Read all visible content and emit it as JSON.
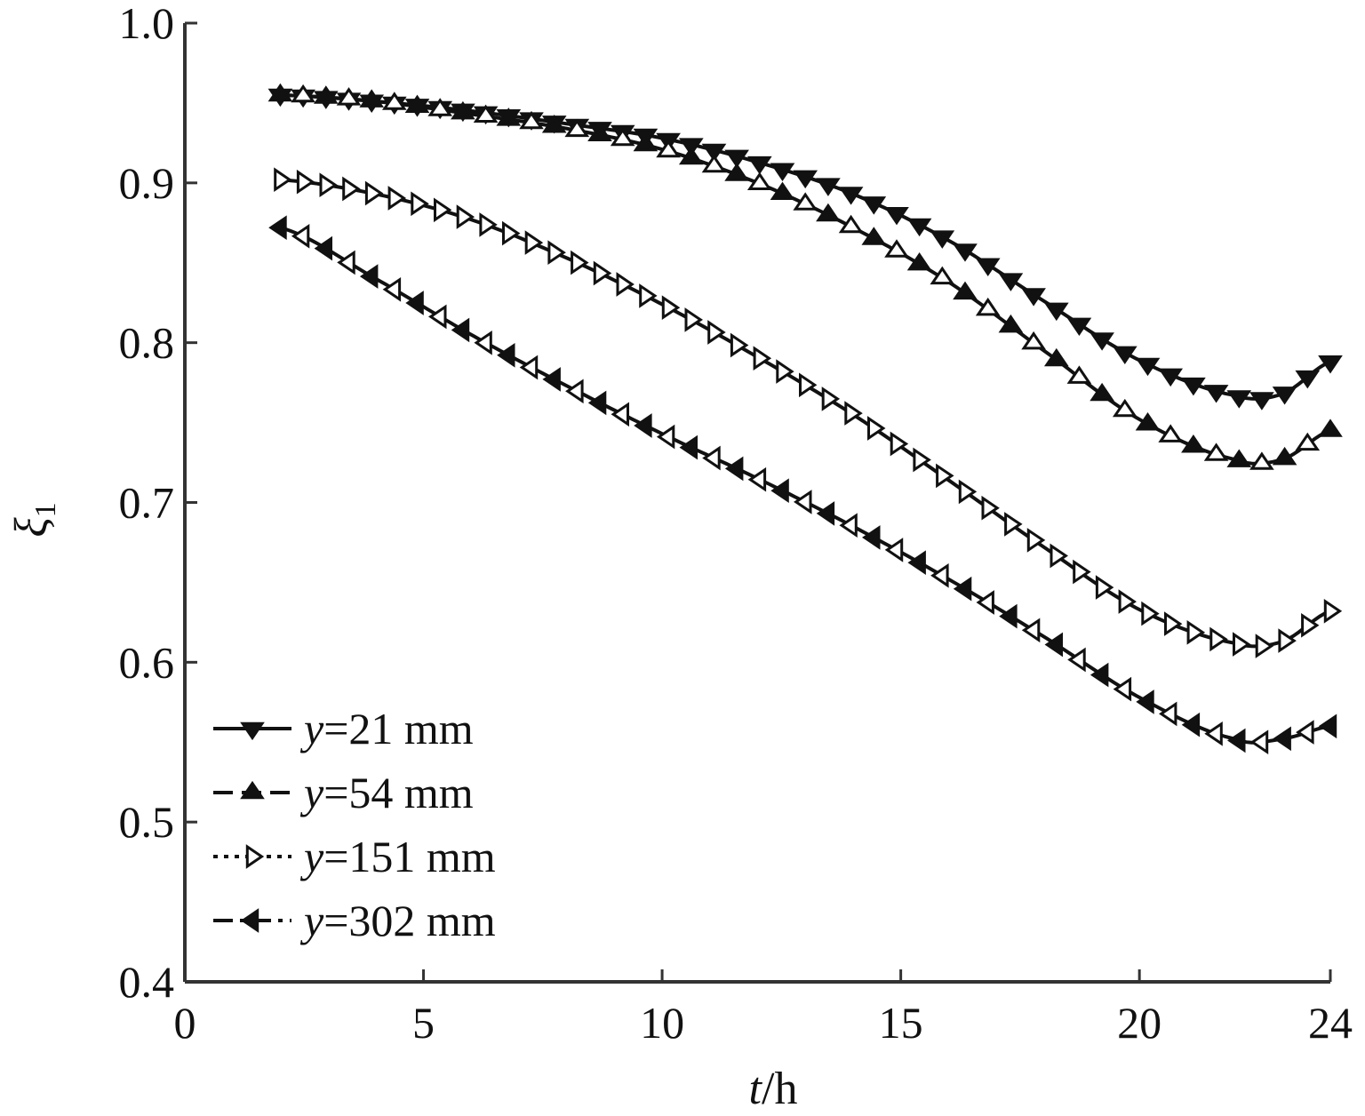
{
  "chart_data": {
    "type": "line",
    "xlabel": {
      "italic": "t",
      "rest": "/h"
    },
    "ylabel": {
      "base": "ξ",
      "subscript": "1"
    },
    "xlim": [
      0,
      24
    ],
    "ylim": [
      0.4,
      1.0
    ],
    "xticks": [
      0,
      5,
      10,
      15,
      20,
      24
    ],
    "xtick_labels": [
      "0",
      "5",
      "10",
      "15",
      "20",
      "24"
    ],
    "yticks": [
      0.4,
      0.5,
      0.6,
      0.7,
      0.8,
      0.9,
      1.0
    ],
    "ytick_labels": [
      "0.4",
      "0.5",
      "0.6",
      "0.7",
      "0.8",
      "0.9",
      "1.0"
    ],
    "grid": false,
    "legend_position": "bottom-left",
    "x": [
      2,
      4,
      6,
      8,
      10,
      12,
      14,
      16,
      18,
      20,
      22,
      23,
      24
    ],
    "series": [
      {
        "name": "y=21 mm",
        "name_italic": "y",
        "name_rest": "=21 mm",
        "marker": "triangle-down-filled",
        "linestyle": "solid",
        "values": [
          0.955,
          0.951,
          0.945,
          0.937,
          0.928,
          0.913,
          0.893,
          0.864,
          0.826,
          0.789,
          0.767,
          0.768,
          0.788
        ]
      },
      {
        "name": "y=54 mm",
        "name_italic": "y",
        "name_rest": "=54 mm",
        "marker": "triangle-up-alternating",
        "linestyle": "dashed",
        "values": [
          0.955,
          0.951,
          0.943,
          0.934,
          0.921,
          0.9,
          0.872,
          0.838,
          0.795,
          0.752,
          0.727,
          0.727,
          0.745
        ]
      },
      {
        "name": "y=151 mm",
        "name_italic": "y",
        "name_rest": "=151 mm",
        "marker": "triangle-right-open",
        "linestyle": "dotted",
        "values": [
          0.902,
          0.893,
          0.877,
          0.853,
          0.824,
          0.791,
          0.755,
          0.714,
          0.672,
          0.633,
          0.612,
          0.613,
          0.632
        ]
      },
      {
        "name": "y=302 mm",
        "name_italic": "y",
        "name_rest": "=302 mm",
        "marker": "triangle-left-alternating",
        "linestyle": "dashdot",
        "values": [
          0.872,
          0.84,
          0.805,
          0.773,
          0.743,
          0.715,
          0.685,
          0.652,
          0.616,
          0.578,
          0.552,
          0.552,
          0.56
        ]
      }
    ]
  }
}
